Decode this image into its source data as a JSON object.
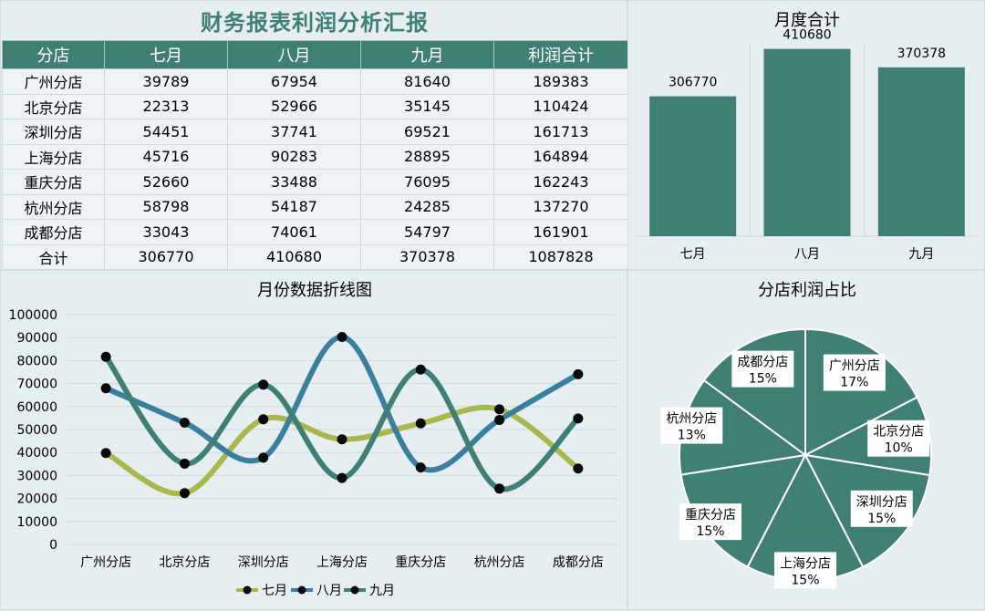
{
  "report": {
    "title": "财务报表利润分析汇报",
    "columns": [
      "分店",
      "七月",
      "八月",
      "九月",
      "利润合计"
    ],
    "rows": [
      [
        "广州分店",
        "39789",
        "67954",
        "81640",
        "189383"
      ],
      [
        "北京分店",
        "22313",
        "52966",
        "35145",
        "110424"
      ],
      [
        "深圳分店",
        "54451",
        "37741",
        "69521",
        "161713"
      ],
      [
        "上海分店",
        "45716",
        "90283",
        "28895",
        "164894"
      ],
      [
        "重庆分店",
        "52660",
        "33488",
        "76095",
        "162243"
      ],
      [
        "杭州分店",
        "58798",
        "54187",
        "24285",
        "137270"
      ],
      [
        "成都分店",
        "33043",
        "74061",
        "54797",
        "161901"
      ],
      [
        "合计",
        "306770",
        "410680",
        "370378",
        "1087828"
      ]
    ]
  },
  "colors": {
    "primary": "#3f7f74",
    "july": "#a9b84c",
    "august": "#3b7f9f",
    "september": "#3f7f74"
  },
  "chart_data": [
    {
      "type": "bar",
      "title": "月度合计",
      "categories": [
        "七月",
        "八月",
        "九月"
      ],
      "values": [
        306770,
        410680,
        370378
      ],
      "ylim": [
        0,
        460000
      ],
      "data_labels": true,
      "grid": false
    },
    {
      "type": "line",
      "title": "月份数据折线图",
      "categories": [
        "广州分店",
        "北京分店",
        "深圳分店",
        "上海分店",
        "重庆分店",
        "杭州分店",
        "成都分店"
      ],
      "series": [
        {
          "name": "七月",
          "values": [
            39789,
            22313,
            54451,
            45716,
            52660,
            58798,
            33043
          ]
        },
        {
          "name": "八月",
          "values": [
            67954,
            52966,
            37741,
            90283,
            33488,
            54187,
            74061
          ]
        },
        {
          "name": "九月",
          "values": [
            81640,
            35145,
            69521,
            28895,
            76095,
            24285,
            54797
          ]
        }
      ],
      "yticks": [
        "0",
        "10000",
        "20000",
        "30000",
        "40000",
        "50000",
        "60000",
        "70000",
        "80000",
        "90000",
        "100000"
      ],
      "ylim": [
        0,
        100000
      ],
      "smooth": true,
      "legend": "bottom",
      "grid": true
    },
    {
      "type": "pie",
      "title": "分店利润占比",
      "slices": [
        {
          "label": "广州分店",
          "value": 189383,
          "pct": "17%"
        },
        {
          "label": "北京分店",
          "value": 110424,
          "pct": "10%"
        },
        {
          "label": "深圳分店",
          "value": 161713,
          "pct": "15%"
        },
        {
          "label": "上海分店",
          "value": 164894,
          "pct": "15%"
        },
        {
          "label": "重庆分店",
          "value": 162243,
          "pct": "15%"
        },
        {
          "label": "杭州分店",
          "value": 137270,
          "pct": "13%"
        },
        {
          "label": "成都分店",
          "value": 161901,
          "pct": "15%"
        }
      ]
    }
  ]
}
